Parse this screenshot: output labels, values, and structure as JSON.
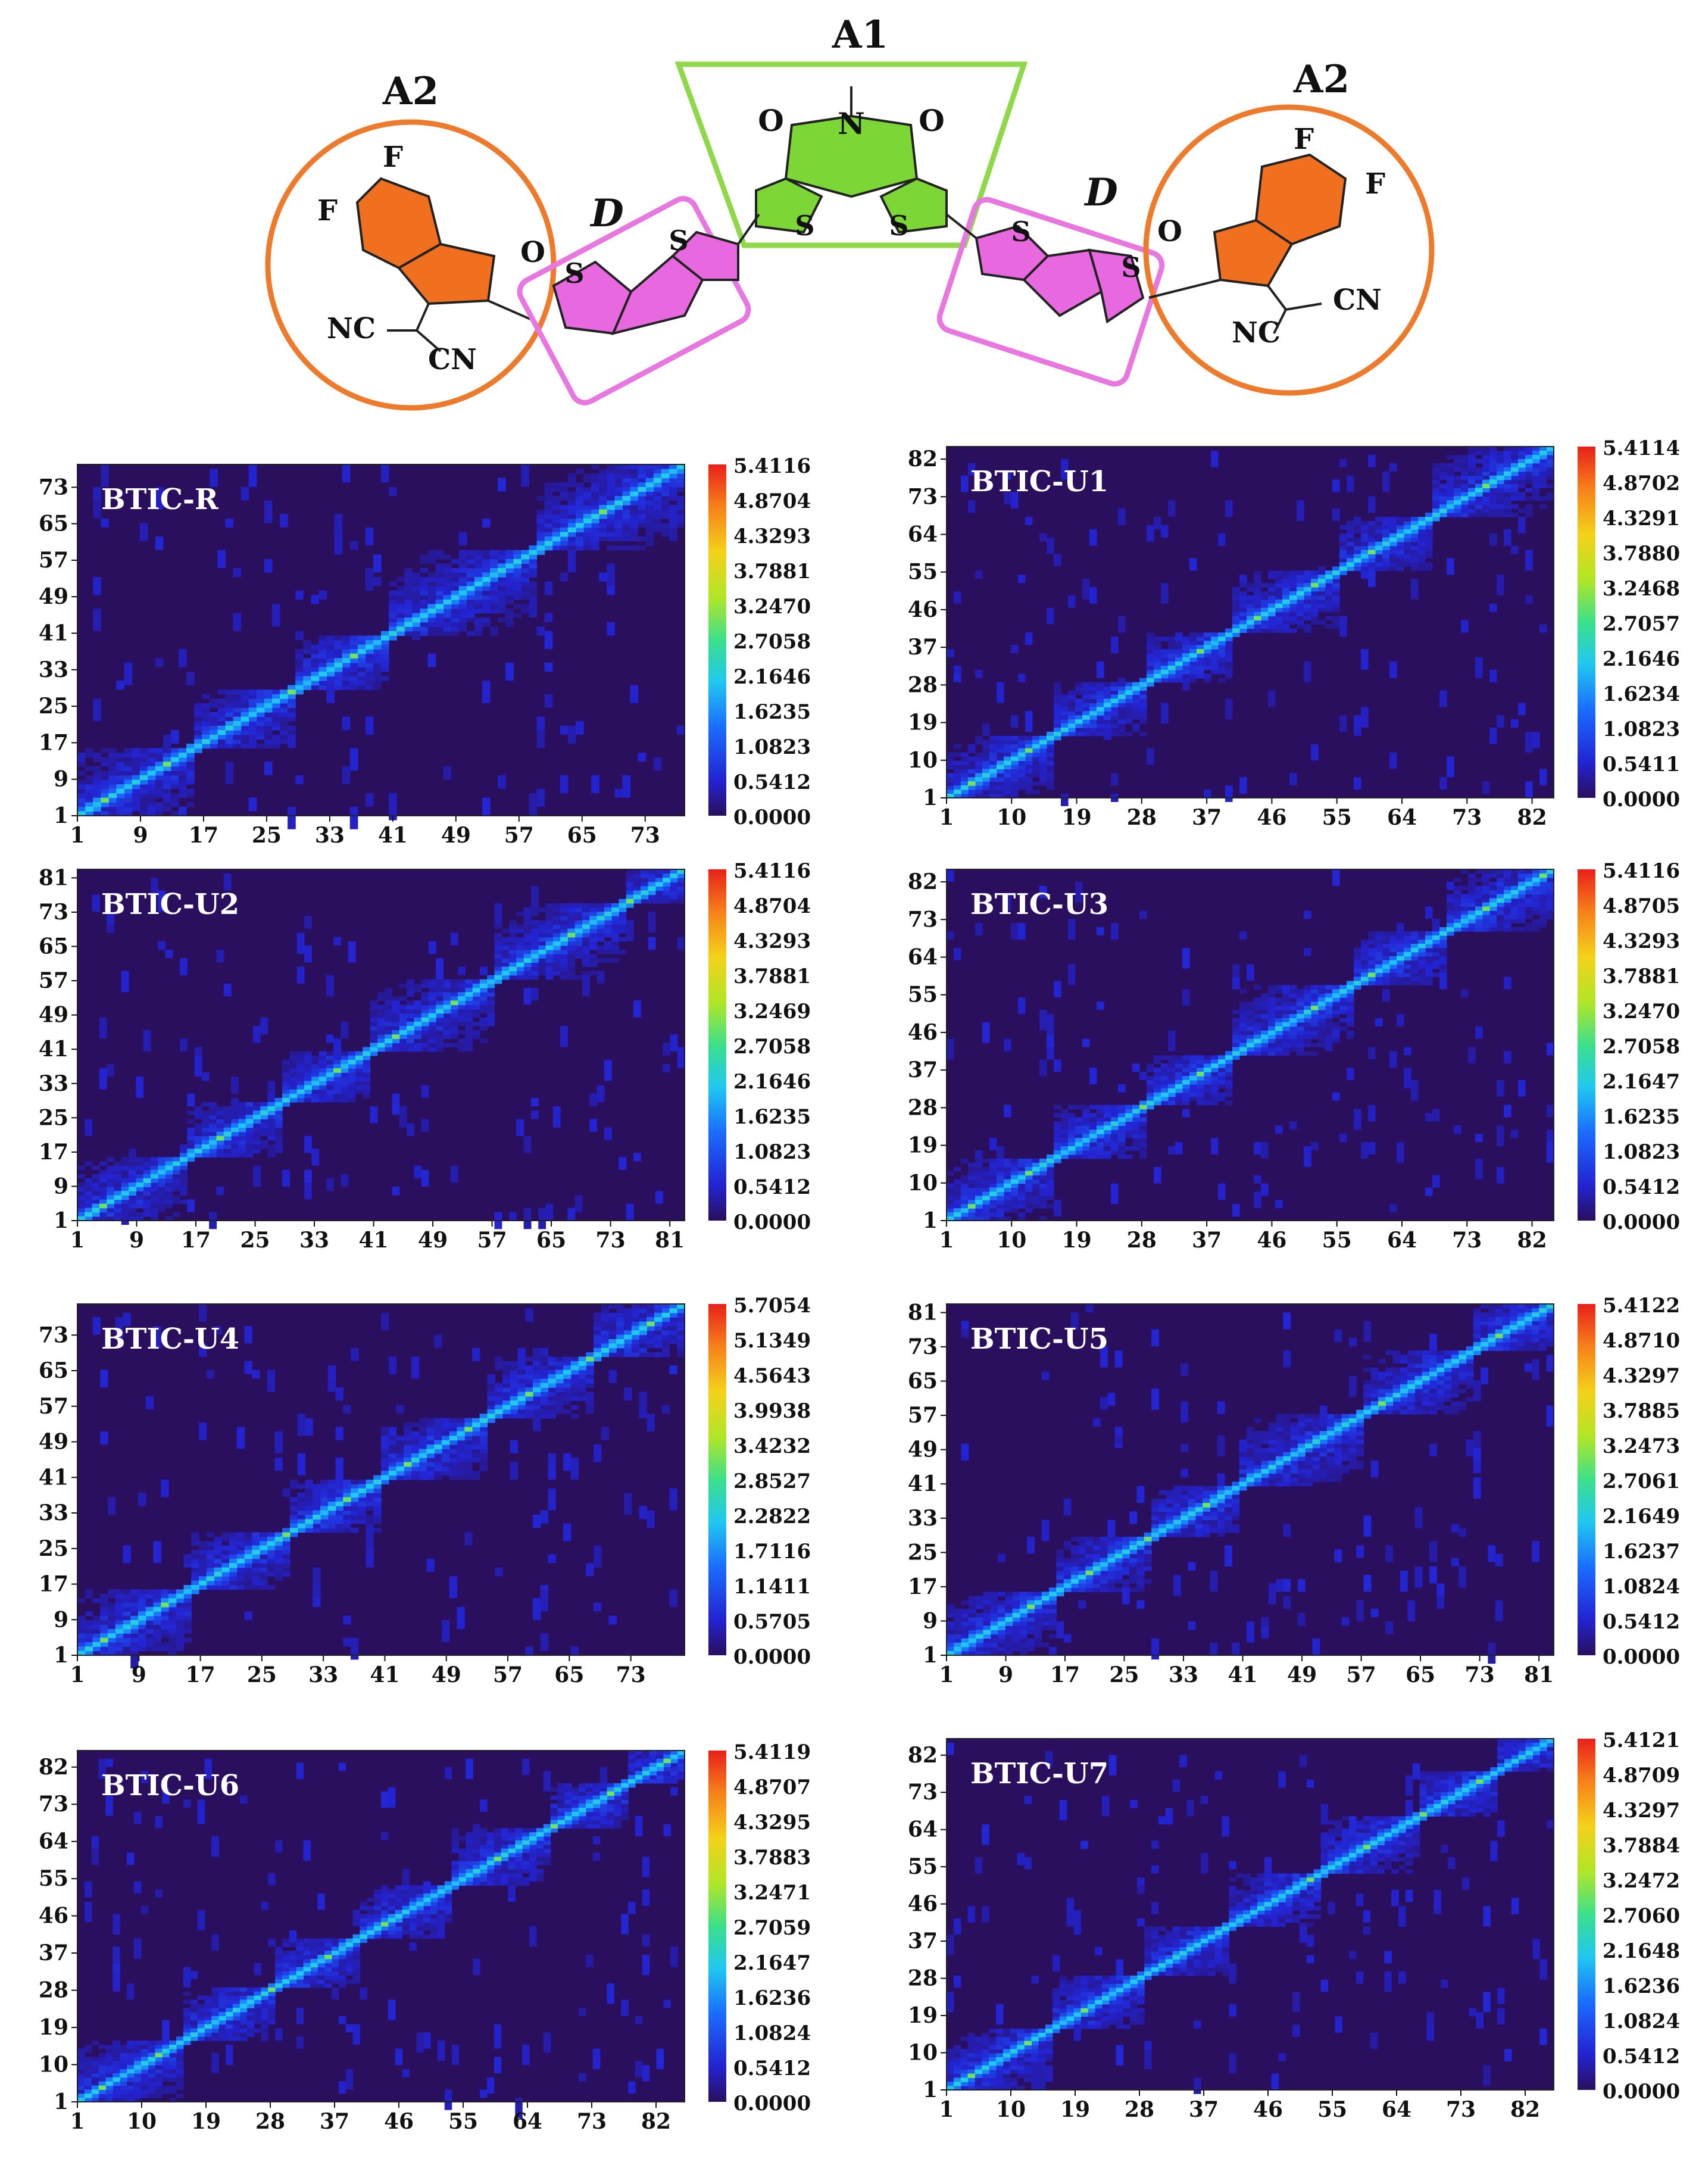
{
  "structure": {
    "labels": {
      "a1": "A1",
      "a2_left": "A2",
      "a2_right": "A2",
      "d_left": "D",
      "d_right": "D"
    },
    "atoms": {
      "o": "O",
      "n": "N",
      "s": "S",
      "f": "F",
      "nc": "NC",
      "cn": "CN"
    },
    "colors": {
      "acceptor1": "#7cd635",
      "acceptor2": "#f07020",
      "donor": "#e868e0",
      "box_a1": "#8ed84a",
      "circle_a2": "#ee7a2c",
      "box_d": "#e878e0"
    }
  },
  "chart_data": [
    {
      "type": "heatmap",
      "title": "BTIC-R",
      "n": 78,
      "ticks": [
        1,
        9,
        17,
        25,
        33,
        41,
        49,
        57,
        65,
        73
      ],
      "colorbar": [
        "5.4116",
        "4.8704",
        "4.3293",
        "3.7881",
        "3.2470",
        "2.7058",
        "2.1646",
        "1.6235",
        "1.0823",
        "0.5412",
        "0.0000"
      ],
      "vmax": 5.4116,
      "blocks": [
        [
          1,
          15
        ],
        [
          16,
          28
        ],
        [
          29,
          40
        ],
        [
          41,
          59
        ],
        [
          60,
          78
        ]
      ]
    },
    {
      "type": "heatmap",
      "title": "BTIC-U1",
      "n": 85,
      "ticks": [
        1,
        10,
        19,
        28,
        37,
        46,
        55,
        64,
        73,
        82
      ],
      "colorbar": [
        "5.4114",
        "4.8702",
        "4.3291",
        "3.7880",
        "3.2468",
        "2.7057",
        "2.1646",
        "1.6234",
        "1.0823",
        "0.5411",
        "0.0000"
      ],
      "vmax": 5.4114,
      "blocks": [
        [
          1,
          15
        ],
        [
          16,
          28
        ],
        [
          29,
          40
        ],
        [
          41,
          55
        ],
        [
          56,
          68
        ],
        [
          69,
          85
        ]
      ]
    },
    {
      "type": "heatmap",
      "title": "BTIC-U2",
      "n": 83,
      "ticks": [
        1,
        9,
        17,
        25,
        33,
        41,
        49,
        57,
        65,
        73,
        81
      ],
      "colorbar": [
        "5.4116",
        "4.8704",
        "4.3293",
        "3.7881",
        "3.2469",
        "2.7058",
        "2.1646",
        "1.6235",
        "1.0823",
        "0.5412",
        "0.0000"
      ],
      "vmax": 5.4116,
      "blocks": [
        [
          1,
          15
        ],
        [
          16,
          28
        ],
        [
          29,
          40
        ],
        [
          41,
          57
        ],
        [
          58,
          75
        ],
        [
          76,
          83
        ]
      ]
    },
    {
      "type": "heatmap",
      "title": "BTIC-U3",
      "n": 85,
      "ticks": [
        1,
        10,
        19,
        28,
        37,
        46,
        55,
        64,
        73,
        82
      ],
      "colorbar": [
        "5.4116",
        "4.8705",
        "4.3293",
        "3.7881",
        "3.2470",
        "2.7058",
        "2.1647",
        "1.6235",
        "1.0823",
        "0.5412",
        "0.0000"
      ],
      "vmax": 5.4116,
      "blocks": [
        [
          1,
          15
        ],
        [
          16,
          28
        ],
        [
          29,
          40
        ],
        [
          41,
          57
        ],
        [
          58,
          70
        ],
        [
          71,
          85
        ]
      ]
    },
    {
      "type": "heatmap",
      "title": "BTIC-U4",
      "n": 80,
      "ticks": [
        1,
        9,
        17,
        25,
        33,
        41,
        49,
        57,
        65,
        73
      ],
      "colorbar": [
        "5.7054",
        "5.1349",
        "4.5643",
        "3.9938",
        "3.4232",
        "2.8527",
        "2.2822",
        "1.7116",
        "1.1411",
        "0.5705",
        "0.0000"
      ],
      "vmax": 5.7054,
      "blocks": [
        [
          1,
          15
        ],
        [
          16,
          28
        ],
        [
          29,
          40
        ],
        [
          41,
          54
        ],
        [
          55,
          68
        ],
        [
          69,
          80
        ]
      ]
    },
    {
      "type": "heatmap",
      "title": "BTIC-U5",
      "n": 83,
      "ticks": [
        1,
        9,
        17,
        25,
        33,
        41,
        49,
        57,
        65,
        73,
        81
      ],
      "colorbar": [
        "5.4122",
        "4.8710",
        "4.3297",
        "3.7885",
        "3.2473",
        "2.7061",
        "2.1649",
        "1.6237",
        "1.0824",
        "0.5412",
        "0.0000"
      ],
      "vmax": 5.4122,
      "blocks": [
        [
          1,
          15
        ],
        [
          16,
          28
        ],
        [
          29,
          40
        ],
        [
          41,
          57
        ],
        [
          58,
          72
        ],
        [
          73,
          83
        ]
      ]
    },
    {
      "type": "heatmap",
      "title": "BTIC-U6",
      "n": 86,
      "ticks": [
        1,
        10,
        19,
        28,
        37,
        46,
        55,
        64,
        73,
        82
      ],
      "colorbar": [
        "5.4119",
        "4.8707",
        "4.3295",
        "3.7883",
        "3.2471",
        "2.7059",
        "2.1647",
        "1.6236",
        "1.0824",
        "0.5412",
        "0.0000"
      ],
      "vmax": 5.4119,
      "blocks": [
        [
          1,
          15
        ],
        [
          16,
          28
        ],
        [
          29,
          40
        ],
        [
          41,
          53
        ],
        [
          54,
          67
        ],
        [
          68,
          78
        ],
        [
          79,
          86
        ]
      ]
    },
    {
      "type": "heatmap",
      "title": "BTIC-U7",
      "n": 86,
      "ticks": [
        1,
        10,
        19,
        28,
        37,
        46,
        55,
        64,
        73,
        82
      ],
      "colorbar": [
        "5.4121",
        "4.8709",
        "4.3297",
        "3.7884",
        "3.2472",
        "2.7060",
        "2.1648",
        "1.6236",
        "1.0824",
        "0.5412",
        "0.0000"
      ],
      "vmax": 5.4121,
      "blocks": [
        [
          1,
          15
        ],
        [
          16,
          28
        ],
        [
          29,
          40
        ],
        [
          41,
          53
        ],
        [
          54,
          67
        ],
        [
          68,
          78
        ],
        [
          79,
          86
        ]
      ]
    }
  ]
}
